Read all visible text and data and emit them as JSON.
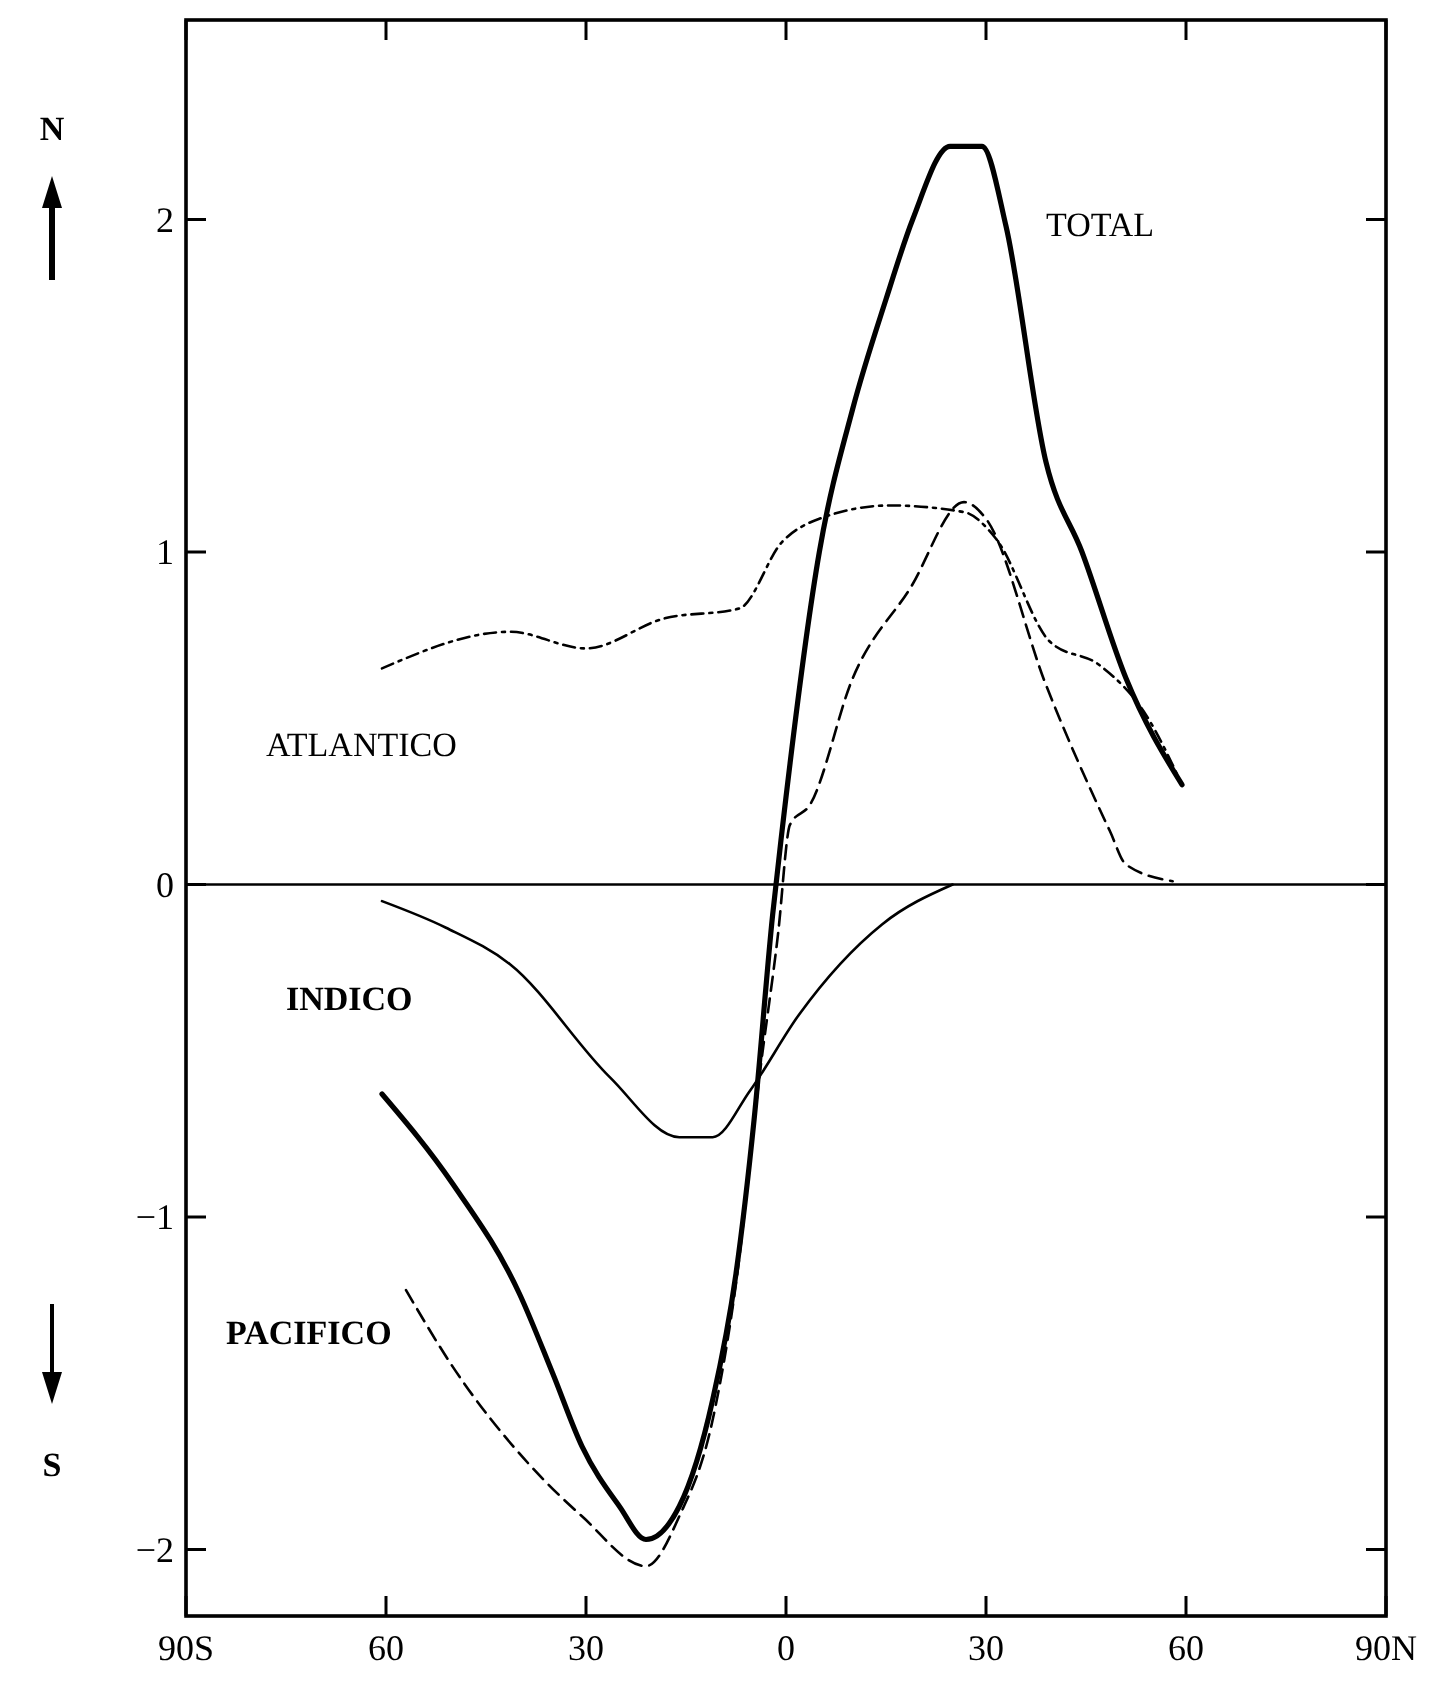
{
  "chart_data": {
    "type": "line",
    "xlim": [
      -90,
      90
    ],
    "ylim": [
      -2.2,
      2.6
    ],
    "xticks": [
      {
        "value": -90,
        "label": "90S"
      },
      {
        "value": -60,
        "label": "60"
      },
      {
        "value": -30,
        "label": "30"
      },
      {
        "value": 0,
        "label": "0"
      },
      {
        "value": 30,
        "label": "30"
      },
      {
        "value": 60,
        "label": "60"
      },
      {
        "value": 90,
        "label": "90N"
      }
    ],
    "yticks": [
      -2,
      -1,
      0,
      1,
      2
    ],
    "grid": false,
    "ref_lines": [
      {
        "axis": "y",
        "value": 0,
        "color": "#000000",
        "line_style": "solid"
      }
    ],
    "annotations": [
      "N",
      "S"
    ],
    "series": [
      {
        "name": "TOTAL",
        "color": "#000000",
        "line_style": "solid",
        "x": [
          -60.6,
          -50,
          -40,
          -35,
          -30.6,
          -25,
          -21,
          -16,
          -11,
          -7.5,
          -4.8,
          -2,
          -0.6,
          5,
          10,
          15,
          19,
          24.6,
          29.4,
          33,
          39,
          44.4,
          51,
          59.4
        ],
        "values": [
          -0.63,
          -0.9,
          -1.23,
          -1.47,
          -1.69,
          -1.87,
          -1.97,
          -1.87,
          -1.55,
          -1.17,
          -0.71,
          -0.09,
          0.16,
          1.0,
          1.43,
          1.76,
          2.0,
          2.22,
          2.22,
          1.98,
          1.27,
          1.0,
          0.62,
          0.3
        ]
      },
      {
        "name": "ATLANTICO",
        "color": "#000000",
        "line_style": "dotted",
        "x": [
          -60.6,
          -41.4,
          -30,
          -18.3,
          -7,
          -0.6,
          5,
          15.6,
          26.7,
          31.5,
          39.6,
          47,
          54,
          59.4
        ],
        "values": [
          0.65,
          0.76,
          0.71,
          0.8,
          0.83,
          1.03,
          1.1,
          1.14,
          1.12,
          1.04,
          0.73,
          0.66,
          0.51,
          0.3
        ]
      },
      {
        "name": "INDICO",
        "color": "#000000",
        "line_style": "solid",
        "x": [
          -60.6,
          -51,
          -41.4,
          -26.4,
          -16,
          -11,
          -5.4,
          2,
          14.4,
          25
        ],
        "values": [
          -0.05,
          -0.13,
          -0.24,
          -0.58,
          -0.76,
          -0.76,
          -0.62,
          -0.39,
          -0.12,
          0
        ]
      },
      {
        "name": "PACIFICO",
        "color": "#000000",
        "line_style": "dashed",
        "x": [
          -57,
          -50,
          -38.7,
          -30.6,
          -21,
          -16,
          -11,
          -7.5,
          -4,
          -1.2,
          0.6,
          3.6,
          10,
          18.6,
          26.7,
          30,
          39,
          48.6,
          51,
          58
        ],
        "values": [
          -1.22,
          -1.45,
          -1.74,
          -1.9,
          -2.05,
          -1.9,
          -1.61,
          -1.2,
          -0.58,
          -0.15,
          0.18,
          0.24,
          0.62,
          0.89,
          1.15,
          1.1,
          0.6,
          0.16,
          0.06,
          0.01
        ]
      }
    ]
  }
}
